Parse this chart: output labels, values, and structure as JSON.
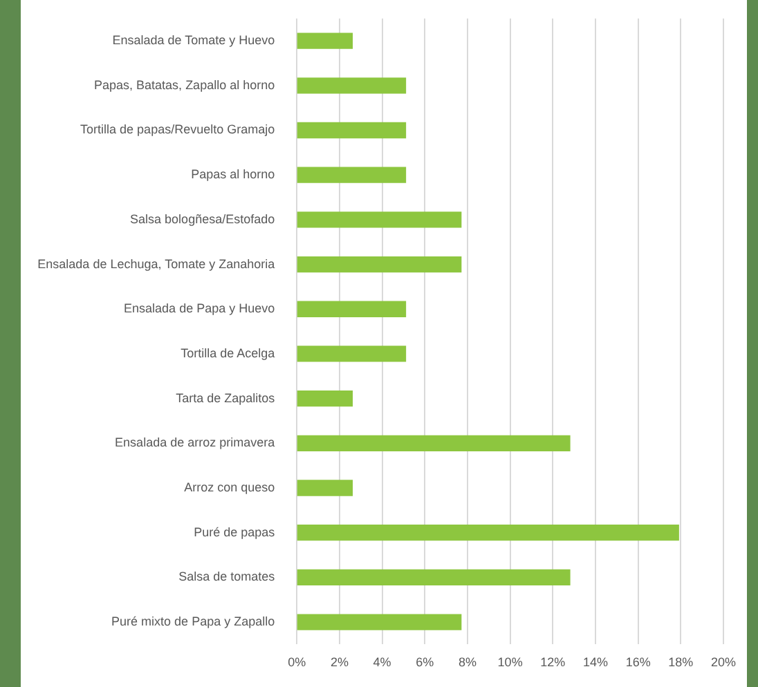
{
  "chart_data": {
    "type": "bar",
    "orientation": "horizontal",
    "categories": [
      "Ensalada de Tomate y Huevo",
      "Papas, Batatas, Zapallo al horno",
      "Tortilla de papas/Revuelto Gramajo",
      "Papas al horno",
      "Salsa bologñesa/Estofado",
      "Ensalada de Lechuga, Tomate y Zanahoria",
      "Ensalada de Papa y Huevo",
      "Tortilla de Acelga",
      "Tarta de Zapalitos",
      "Ensalada de arroz primavera",
      "Arroz con queso",
      "Puré de papas",
      "Salsa de tomates",
      "Puré mixto de Papa y Zapallo"
    ],
    "values": [
      2.6,
      5.1,
      5.1,
      5.1,
      7.7,
      7.7,
      5.1,
      5.1,
      2.6,
      12.8,
      2.6,
      17.9,
      12.8,
      7.7
    ],
    "color": "#8dc63f",
    "xlim": [
      0,
      20
    ],
    "xticks": [
      {
        "value": 0,
        "label": "0%"
      },
      {
        "value": 2,
        "label": "2%"
      },
      {
        "value": 4,
        "label": "4%"
      },
      {
        "value": 6,
        "label": "6%"
      },
      {
        "value": 8,
        "label": "8%"
      },
      {
        "value": 10,
        "label": "10%"
      },
      {
        "value": 12,
        "label": "12%"
      },
      {
        "value": 14,
        "label": "14%"
      },
      {
        "value": 16,
        "label": "16%"
      },
      {
        "value": 18,
        "label": "18%"
      },
      {
        "value": 20,
        "label": "20%"
      }
    ],
    "grid": "x",
    "legend": false
  }
}
